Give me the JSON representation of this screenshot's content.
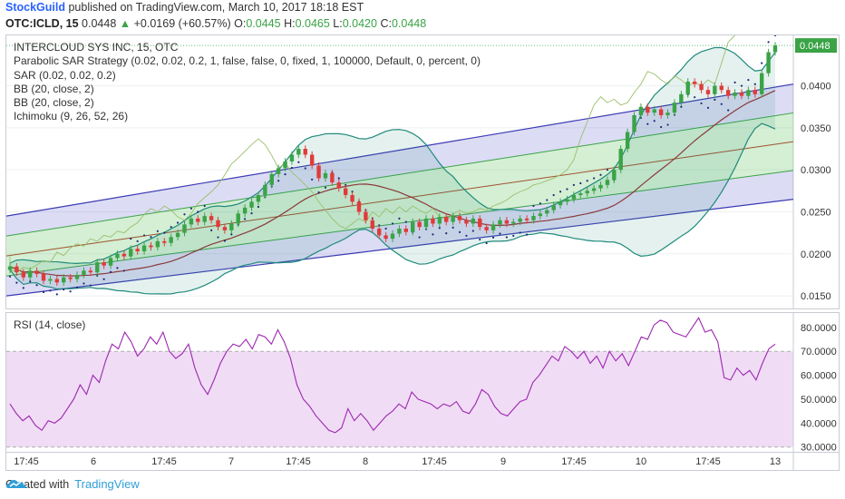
{
  "header": {
    "author": "StockGuild",
    "published_text": " published on TradingView.com, March 10, 2017 18:18 EST",
    "symbol": "OTC:ICLD, 15",
    "last": "0.0448",
    "change_arrow": "▲",
    "change": "+0.0169 (+60.57%)",
    "o_label": "O:",
    "o": "0.0445",
    "h_label": "H:",
    "h": "0.0465",
    "l_label": "L:",
    "l": "0.0420",
    "c_label": "C:",
    "c": "0.0448"
  },
  "legend": [
    "INTERCLOUD SYS INC, 15, OTC",
    "Parabolic SAR Strategy (0.02, 0.02, 0.2, 1, false, false, 0, fixed, 1, 100000, Default, 0, percent, 0)",
    "SAR (0.02, 0.02, 0.2)",
    "BB (20, close, 2)",
    "BB (20, close, 2)",
    "Ichimoku (9, 26, 52, 26)"
  ],
  "rsi_label": "RSI (14, close)",
  "price_badge": "0.0448",
  "footer": {
    "created_with": "Created with",
    "brand": "TradingView"
  },
  "colors": {
    "up": "#3aa346",
    "down": "#e03b3b",
    "channel": "#3b3bb3",
    "bb": "#1f8a7a",
    "rsi": "#9c27b0",
    "rsi_band": "#f0dcf5",
    "badge": "#3aa346",
    "signal_red": "#e02020",
    "signal_blue": "#2196f3"
  },
  "chart_data": [
    {
      "type": "candlestick",
      "title": "INTERCLOUD SYS INC, 15, OTC",
      "ylim": [
        0.0135,
        0.046
      ],
      "y_ticks": [
        "0.0400",
        "0.0350",
        "0.0300",
        "0.0250",
        "0.0200",
        "0.0150"
      ],
      "x_ticks": [
        "17:45",
        "6",
        "17:45",
        "7",
        "17:45",
        "8",
        "17:45",
        "9",
        "17:45",
        "10",
        "17:45",
        "13"
      ],
      "last_price": "0.0448",
      "close": [
        0.0185,
        0.0178,
        0.0172,
        0.018,
        0.0176,
        0.0168,
        0.017,
        0.0166,
        0.0172,
        0.017,
        0.0175,
        0.018,
        0.0178,
        0.019,
        0.0186,
        0.0195,
        0.02,
        0.0197,
        0.0206,
        0.0203,
        0.021,
        0.0208,
        0.0215,
        0.0213,
        0.022,
        0.0225,
        0.0235,
        0.0242,
        0.0238,
        0.0245,
        0.024,
        0.0232,
        0.0228,
        0.0236,
        0.0248,
        0.0255,
        0.0262,
        0.027,
        0.0282,
        0.0295,
        0.0302,
        0.031,
        0.0318,
        0.0325,
        0.0318,
        0.0305,
        0.029,
        0.0296,
        0.0285,
        0.0278,
        0.027,
        0.0262,
        0.025,
        0.024,
        0.023,
        0.0222,
        0.0218,
        0.0224,
        0.023,
        0.0226,
        0.0238,
        0.0232,
        0.0242,
        0.0236,
        0.0244,
        0.0238,
        0.0245,
        0.024,
        0.0236,
        0.0242,
        0.0232,
        0.0228,
        0.0235,
        0.024,
        0.0236,
        0.0238,
        0.0242,
        0.024,
        0.0245,
        0.0248,
        0.0252,
        0.0258,
        0.0262,
        0.0265,
        0.027,
        0.0272,
        0.0275,
        0.0278,
        0.0282,
        0.0288,
        0.03,
        0.0325,
        0.0345,
        0.0365,
        0.0375,
        0.0368,
        0.0372,
        0.0365,
        0.0368,
        0.038,
        0.039,
        0.0405,
        0.0402,
        0.0395,
        0.039,
        0.04,
        0.0395,
        0.0388,
        0.0392,
        0.0388,
        0.0395,
        0.039,
        0.0415,
        0.044,
        0.0448
      ],
      "upper_channel": [
        0.0245,
        0.0402
      ],
      "lower_channel": [
        0.015,
        0.0265
      ]
    },
    {
      "type": "line",
      "title": "RSI (14, close)",
      "ylim": [
        28,
        86
      ],
      "y_ticks": [
        "80.0000",
        "70.0000",
        "60.0000",
        "50.0000",
        "40.0000",
        "30.0000"
      ],
      "band": [
        30,
        70
      ],
      "values": [
        48,
        44,
        41,
        43,
        39,
        37,
        41,
        40,
        42,
        46,
        50,
        56,
        52,
        60,
        57,
        66,
        73,
        71,
        78,
        74,
        68,
        71,
        76,
        73,
        78,
        70,
        67,
        69,
        73,
        63,
        56,
        52,
        58,
        65,
        70,
        73,
        72,
        75,
        71,
        77,
        76,
        73,
        79,
        74,
        67,
        56,
        50,
        47,
        43,
        40,
        37,
        36,
        38,
        46,
        41,
        44,
        41,
        37,
        40,
        43,
        45,
        48,
        46,
        53,
        50,
        49,
        48,
        46,
        48,
        47,
        49,
        45,
        44,
        48,
        54,
        52,
        47,
        44,
        43,
        46,
        49,
        50,
        57,
        60,
        64,
        68,
        66,
        72,
        70,
        67,
        70,
        65,
        68,
        63,
        70,
        66,
        69,
        64,
        70,
        76,
        75,
        81,
        83,
        82,
        78,
        77,
        76,
        80,
        84,
        78,
        79,
        74,
        59,
        58,
        63,
        60,
        62,
        58,
        65,
        71,
        73
      ]
    }
  ]
}
